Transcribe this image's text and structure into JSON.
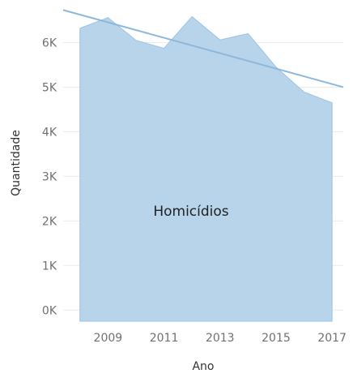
{
  "chart_data": {
    "type": "area",
    "xlabel": "Ano",
    "ylabel": "Quantidade",
    "area_label": "Homicídios",
    "x": [
      2008,
      2009,
      2010,
      2011,
      2012,
      2013,
      2014,
      2015,
      2016,
      2017
    ],
    "x_ticks": [
      2009,
      2011,
      2013,
      2015,
      2017
    ],
    "x_tick_labels": [
      "2009",
      "2011",
      "2013",
      "2015",
      "2017"
    ],
    "y_ticks": [
      0,
      1000,
      2000,
      3000,
      4000,
      5000,
      6000
    ],
    "y_tick_labels": [
      "0K",
      "1K",
      "2K",
      "3K",
      "4K",
      "5K",
      "6K"
    ],
    "xlim": [
      2007.4,
      2017.4
    ],
    "ylim": [
      -250,
      6700
    ],
    "series": [
      {
        "name": "Homicídios",
        "values": [
          6320,
          6560,
          6050,
          5870,
          6580,
          6060,
          6200,
          5450,
          4890,
          4650
        ]
      }
    ],
    "trend_line": {
      "x": [
        2007.4,
        2017.4
      ],
      "y": [
        6730,
        5000
      ]
    },
    "gridlines": "horizontal",
    "legend": "none",
    "colors": {
      "area": "#b8d4eb",
      "area_edge": "#9cc3e4",
      "trend": "#8cb8dc",
      "grid": "#ececec",
      "tick_text": "#707070",
      "title_text": "#333333"
    }
  }
}
